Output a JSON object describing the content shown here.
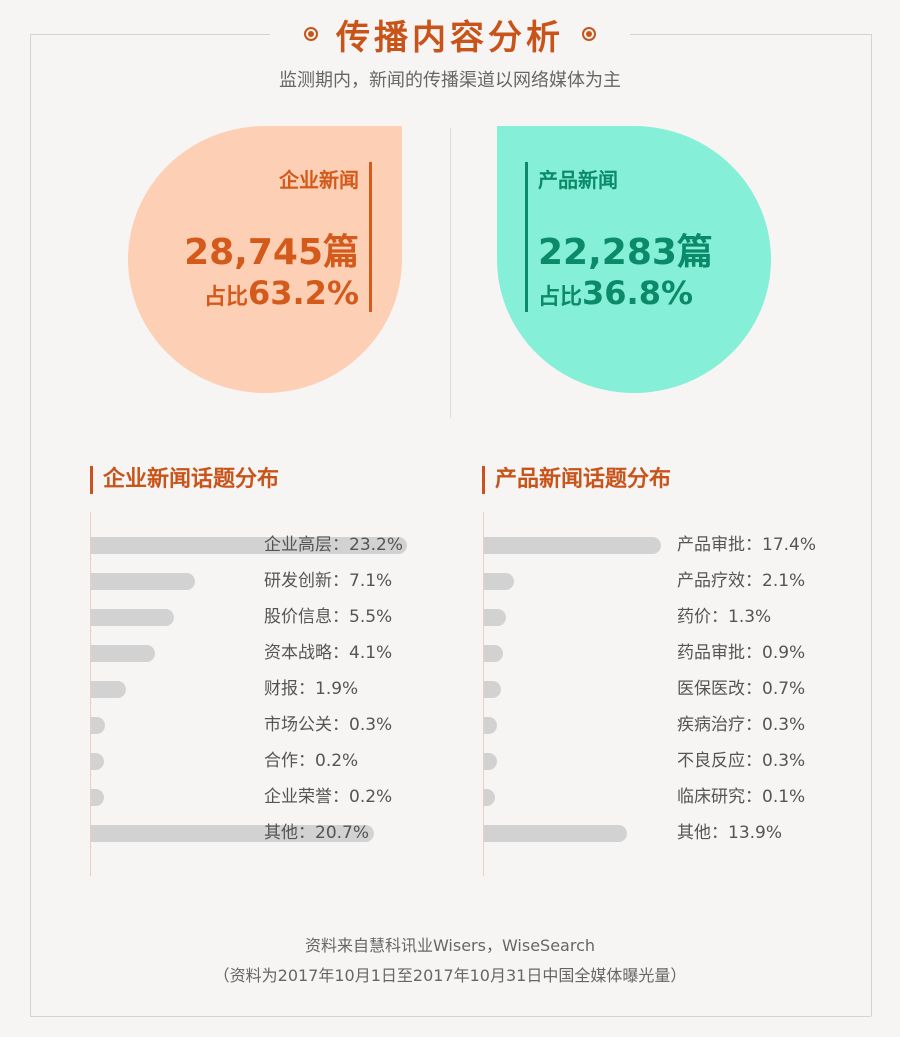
{
  "header": {
    "title": "传播内容分析",
    "subtitle": "监测期内，新闻的传播渠道以网络媒体为主"
  },
  "corporate": {
    "label": "企业新闻",
    "count": "28,745篇",
    "share_prefix": "占比",
    "share": "63.2%",
    "color": "#d35a1a",
    "fill": "#fdd0b6"
  },
  "product": {
    "label": "产品新闻",
    "count": "22,283篇",
    "share_prefix": "占比",
    "share": "36.8%",
    "color": "#0b8a6a",
    "fill": "#86efd8"
  },
  "chart_data": [
    {
      "type": "bar",
      "title": "企业新闻话题分布",
      "orientation": "horizontal",
      "categories": [
        "企业高层",
        "研发创新",
        "股价信息",
        "资本战略",
        "财报",
        "市场公关",
        "合作",
        "企业荣誉",
        "其他"
      ],
      "values": [
        23.2,
        7.1,
        5.5,
        4.1,
        1.9,
        0.3,
        0.2,
        0.2,
        20.7
      ],
      "labels": [
        "企业高层：23.2%",
        "研发创新：7.1%",
        "股价信息：5.5%",
        "资本战略：4.1%",
        "财报：1.9%",
        "市场公关：0.3%",
        "合作：0.2%",
        "企业荣誉：0.2%",
        "其他：20.7%"
      ],
      "unit": "%"
    },
    {
      "type": "bar",
      "title": "产品新闻话题分布",
      "orientation": "horizontal",
      "categories": [
        "产品审批",
        "产品疗效",
        "药价",
        "药品审批",
        "医保医改",
        "疾病治疗",
        "不良反应",
        "临床研究",
        "其他"
      ],
      "values": [
        17.4,
        2.1,
        1.3,
        0.9,
        0.7,
        0.3,
        0.3,
        0.1,
        13.9
      ],
      "labels": [
        "产品审批：17.4%",
        "产品疗效：2.1%",
        "药价：1.3%",
        "药品审批：0.9%",
        "医保医改：0.7%",
        "疾病治疗：0.3%",
        "不良反应：0.3%",
        "临床研究：0.1%",
        "其他：13.9%"
      ],
      "unit": "%"
    }
  ],
  "footer": {
    "source": "资料来自慧科讯业Wisers，WiseSearch",
    "note": "（资料为2017年10月1日至2017年10月31日中国全媒体曝光量）"
  }
}
